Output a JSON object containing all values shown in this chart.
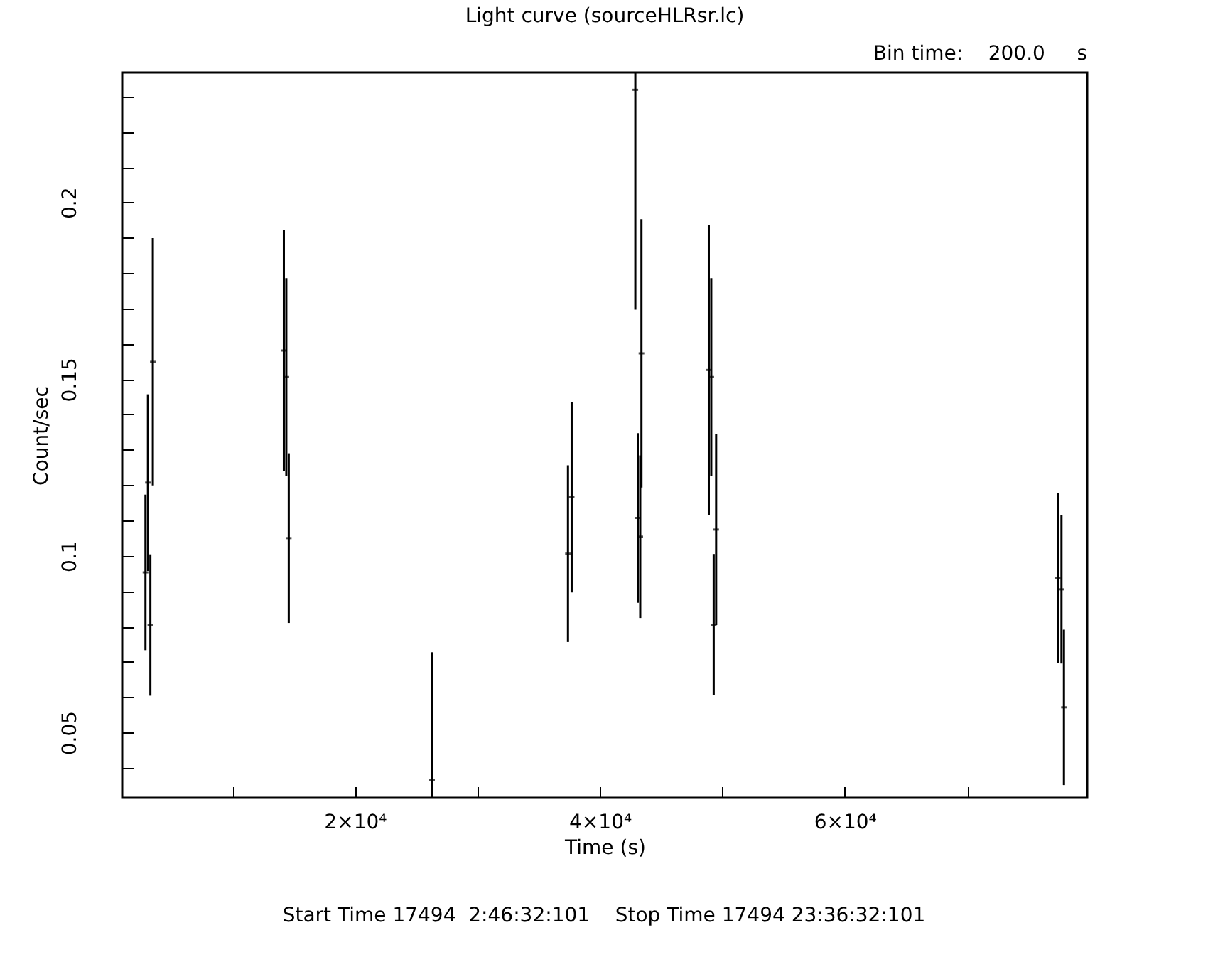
{
  "chart_data": {
    "type": "scatter",
    "title": "Light curve (sourceHLRsr.lc)",
    "subtitle": "Bin time:    200.0     s",
    "xlabel": "Time (s)",
    "ylabel": "Count/sec",
    "annotations": [
      "Start Time 17494  2:46:32:101    Stop Time 17494 23:36:32:101"
    ],
    "x": [
      2900,
      3100,
      3300,
      3500,
      14200,
      14400,
      14600,
      26300,
      37400,
      37700,
      42900,
      43100,
      43300,
      43400,
      48900,
      49100,
      49300,
      49500,
      77400,
      77700,
      77900
    ],
    "series": [
      {
        "color": "#000000",
        "values": [
          0.0953,
          0.1207,
          0.0804,
          0.1549,
          0.1581,
          0.1506,
          0.105,
          0.0365,
          0.1006,
          0.1166,
          0.2319,
          0.1107,
          0.1054,
          0.1573,
          0.1526,
          0.1506,
          0.0805,
          0.1074,
          0.0937,
          0.0905,
          0.0571
        ],
        "errors": [
          0.022,
          0.025,
          0.02,
          0.035,
          0.034,
          0.028,
          0.024,
          [
            0.0315,
            0.0727
          ],
          0.025,
          0.027,
          [
            0.1697,
            0.2368
          ],
          0.024,
          0.023,
          0.038,
          0.041,
          0.028,
          0.02,
          0.027,
          0.024,
          0.021,
          0.022
        ]
      }
    ],
    "grid": false,
    "xlim": [
      1000,
      79800
    ],
    "xticks": [
      {
        "value": 10000,
        "label": null
      },
      {
        "value": 20000,
        "label": "2×10⁴"
      },
      {
        "value": 30000,
        "label": null
      },
      {
        "value": 40000,
        "label": "4×10⁴"
      },
      {
        "value": 50000,
        "label": null
      },
      {
        "value": 60000,
        "label": "6×10⁴"
      },
      {
        "value": 70000,
        "label": null
      }
    ],
    "ylim": [
      0.0315,
      0.2368
    ],
    "yticks": [
      {
        "value": 0.04,
        "label": null
      },
      0.05,
      {
        "value": 0.06,
        "label": null
      },
      {
        "value": 0.07,
        "label": null
      },
      {
        "value": 0.08,
        "label": null
      },
      {
        "value": 0.09,
        "label": null
      },
      0.1,
      {
        "value": 0.11,
        "label": null
      },
      {
        "value": 0.12,
        "label": null
      },
      {
        "value": 0.13,
        "label": null
      },
      {
        "value": 0.14,
        "label": null
      },
      0.15,
      {
        "value": 0.16,
        "label": null
      },
      {
        "value": 0.17,
        "label": null
      },
      {
        "value": 0.18,
        "label": null
      },
      {
        "value": 0.19,
        "label": null
      },
      0.2,
      {
        "value": 0.21,
        "label": null
      },
      {
        "value": 0.22,
        "label": null
      },
      {
        "value": 0.23,
        "label": null
      }
    ]
  }
}
